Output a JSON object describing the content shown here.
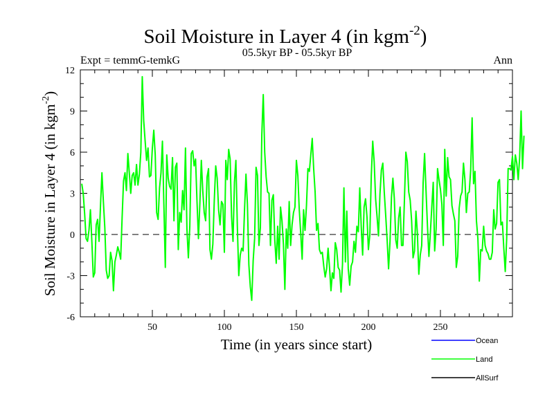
{
  "chart_data": {
    "type": "line",
    "title_main": "Soil Moisture in Layer 4 (in kgm",
    "title_sup": "-2",
    "title_close": ")",
    "subtitle": "05.5kyr BP - 05.5kyr BP",
    "expt_label": "Expt = temmG-temkG",
    "season_label": "Ann",
    "xlabel": "Time (in years since start)",
    "ylabel_main": "Soil Moisture in Layer 4 (in kgm",
    "ylabel_sup": "-2",
    "ylabel_close": ")",
    "xlim": [
      0,
      300
    ],
    "ylim": [
      -6,
      12
    ],
    "x_ticks": [
      50,
      100,
      150,
      200,
      250
    ],
    "y_ticks": [
      -6,
      -3,
      0,
      3,
      6,
      9,
      12
    ],
    "zero_line": 0,
    "legend": [
      {
        "name": "Ocean",
        "color": "#0000ff"
      },
      {
        "name": "Land",
        "color": "#00ff00"
      },
      {
        "name": "AllSurf",
        "color": "#000000"
      }
    ],
    "series": [
      {
        "name": "Land",
        "color": "#00ff00",
        "x_start": 1,
        "values": [
          3.7,
          3.0,
          1.5,
          -0.3,
          -0.5,
          0.3,
          1.8,
          -0.5,
          -3.1,
          -2.8,
          0.7,
          1.1,
          -0.5,
          2.1,
          4.5,
          2.4,
          0.5,
          -2.6,
          -3.2,
          -3.0,
          -1.3,
          -1.9,
          -4.1,
          -2.0,
          -1.5,
          -0.9,
          -1.3,
          -1.8,
          1.2,
          3.9,
          4.5,
          3.2,
          5.9,
          4.5,
          3.0,
          4.3,
          4.5,
          3.6,
          5.1,
          3.6,
          4.4,
          6.0,
          11.5,
          8.3,
          6.8,
          5.4,
          6.3,
          4.2,
          4.3,
          6.3,
          7.6,
          5.8,
          1.6,
          1.1,
          3.4,
          4.5,
          6.8,
          2.2,
          -2.4,
          5.8,
          4.1,
          3.5,
          3.3,
          5.6,
          1.0,
          4.9,
          5.2,
          -1.1,
          1.6,
          0.9,
          3.2,
          1.8,
          6.3,
          0.4,
          -1.7,
          0.6,
          5.9,
          6.1,
          5.0,
          5.5,
          2.4,
          -0.3,
          2.3,
          5.4,
          3.2,
          1.6,
          1.0,
          4.2,
          4.8,
          -1.1,
          -1.8,
          -0.7,
          2.5,
          5.0,
          4.1,
          1.8,
          0.7,
          2.4,
          2.2,
          -1.3,
          5.4,
          4.0,
          6.2,
          5.5,
          1.3,
          -0.5,
          3.8,
          5.4,
          0.6,
          -3.0,
          -1.5,
          -1.0,
          -1.2,
          1.8,
          4.4,
          2.2,
          -2.2,
          -3.8,
          -4.8,
          -1.9,
          -0.3,
          4.9,
          4.3,
          -0.8,
          0.5,
          7.3,
          10.2,
          6.0,
          4.2,
          3.1,
          3.0,
          -0.8,
          2.5,
          2.9,
          -0.4,
          -2.1,
          0.6,
          -1.8,
          2.0,
          1.0,
          -0.7,
          -4.0,
          0.4,
          -1.0,
          2.4,
          -0.8,
          0.7,
          1.6,
          2.0,
          5.4,
          4.3,
          1.8,
          0.1,
          -1.8,
          1.8,
          0.3,
          2.1,
          4.8,
          4.6,
          5.8,
          7.0,
          4.8,
          3.1,
          0.3,
          0.8,
          -1.1,
          -1.4,
          -1.3,
          -2.3,
          -3.1,
          -2.5,
          -1.0,
          -2.4,
          -4.1,
          -2.8,
          -3.2,
          -0.6,
          -1.1,
          -2.4,
          -2.6,
          -4.2,
          -2.2,
          3.4,
          -2.0,
          1.7,
          -2.5,
          -3.7,
          -2.3,
          -2.0,
          -0.5,
          -1.3,
          0.6,
          0.2,
          3.4,
          0.6,
          -1.5,
          2.0,
          2.6,
          1.3,
          -1.1,
          0.0,
          4.3,
          6.8,
          5.3,
          2.6,
          1.3,
          -0.1,
          2.9,
          4.7,
          5.2,
          3.1,
          1.4,
          -0.4,
          -2.5,
          -0.5,
          2.7,
          4.1,
          2.6,
          -0.4,
          -1.0,
          1.2,
          2.0,
          -0.8,
          -0.8,
          2.5,
          6.0,
          5.3,
          3.1,
          2.5,
          1.0,
          -1.7,
          -1.2,
          1.7,
          0.1,
          -2.9,
          -1.5,
          -0.8,
          3.8,
          5.9,
          3.2,
          0.6,
          -1.6,
          0.1,
          2.0,
          3.8,
          -1.2,
          0.4,
          4.8,
          4.0,
          3.3,
          2.2,
          -0.8,
          6.2,
          2.8,
          5.6,
          4.2,
          4.0,
          2.1,
          1.5,
          1.0,
          -2.4,
          -1.6,
          1.9,
          2.8,
          3.1,
          5.2,
          4.0,
          1.6,
          3.0,
          3.1,
          4.7,
          8.5,
          3.7,
          4.6,
          1.0,
          -0.3,
          -3.4,
          -1.1,
          -1.2,
          0.6,
          -0.8,
          -1.2,
          -1.4,
          -1.8,
          -1.8,
          -1.3,
          1.8,
          0.4,
          0.8,
          3.8,
          4.0,
          0.7,
          0.9,
          -1.0,
          -2.7,
          -0.3,
          4.8,
          4.8,
          4.7,
          5.7,
          4.0,
          5.8,
          5.2,
          4.0,
          5.6,
          9.0,
          4.8,
          7.2
        ]
      }
    ]
  }
}
